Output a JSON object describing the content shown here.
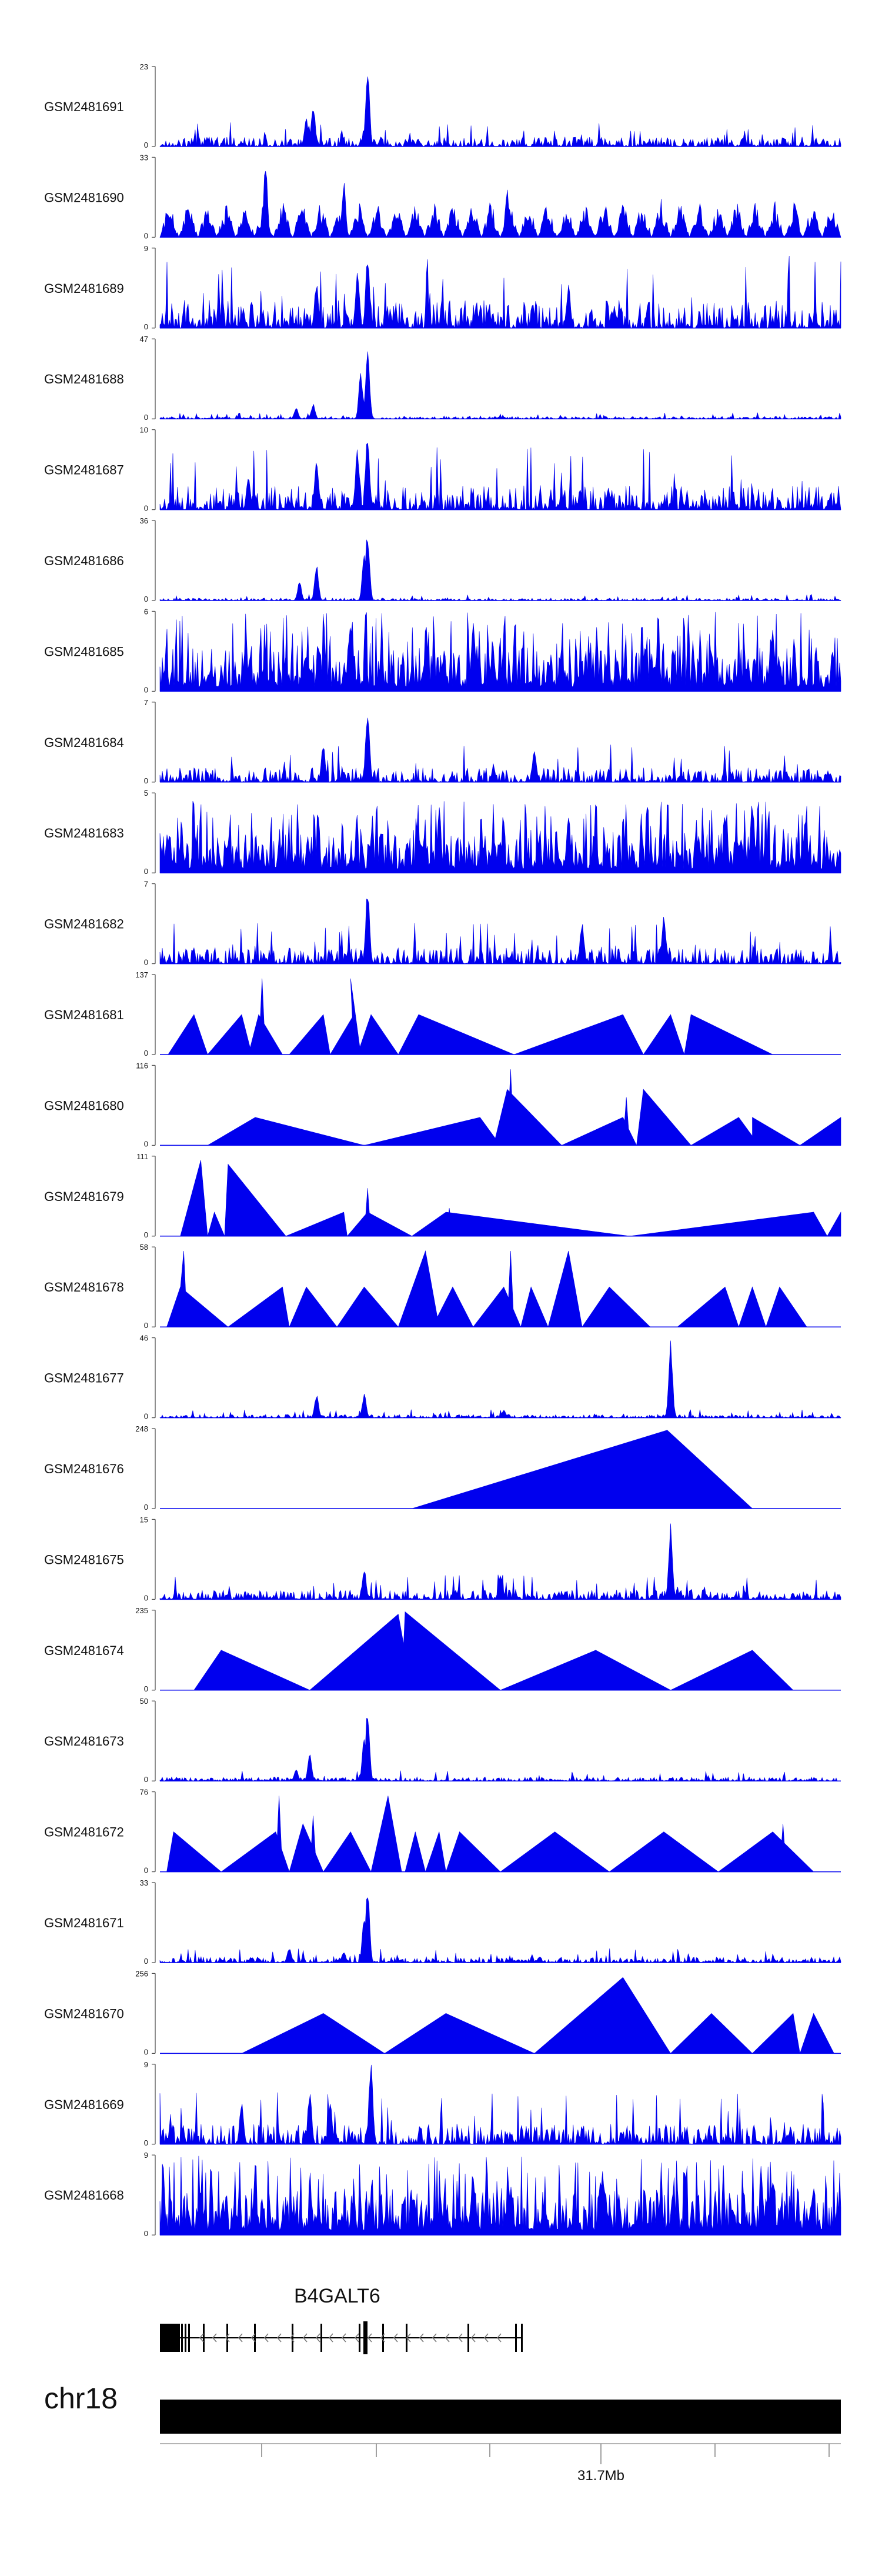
{
  "colors": {
    "signal": "#0000ee",
    "axis": "#444444",
    "text": "#111111",
    "gene": "#000000",
    "chrom": "#000000"
  },
  "chart_data": {
    "type": "area",
    "title": "",
    "tracks": [
      {
        "name": "GSM2481691",
        "ymax": "23",
        "ymin": "0",
        "style": "noisy",
        "bg": 0.12,
        "peaks": [
          [
            0.225,
            0.55
          ],
          [
            0.305,
            1.0
          ],
          [
            0.215,
            0.35
          ]
        ]
      },
      {
        "name": "GSM2481690",
        "ymax": "33",
        "ymin": "0",
        "style": "spiky",
        "bg": 0.35,
        "peaks": [
          [
            0.155,
            0.95
          ],
          [
            0.27,
            0.7
          ],
          [
            0.51,
            0.6
          ]
        ]
      },
      {
        "name": "GSM2481689",
        "ymax": "9",
        "ymin": "0",
        "style": "noisy",
        "bg": 0.35,
        "peaks": [
          [
            0.305,
            0.95
          ],
          [
            0.29,
            0.75
          ],
          [
            0.23,
            0.6
          ],
          [
            0.6,
            0.55
          ]
        ]
      },
      {
        "name": "GSM2481688",
        "ymax": "47",
        "ymin": "0",
        "style": "noisy",
        "bg": 0.03,
        "peaks": [
          [
            0.305,
            0.95
          ],
          [
            0.295,
            0.6
          ],
          [
            0.2,
            0.15
          ],
          [
            0.225,
            0.2
          ]
        ]
      },
      {
        "name": "GSM2481687",
        "ymax": "10",
        "ymin": "0",
        "style": "noisy",
        "bg": 0.3,
        "peaks": [
          [
            0.305,
            1.0
          ],
          [
            0.29,
            0.8
          ],
          [
            0.23,
            0.7
          ],
          [
            0.13,
            0.45
          ]
        ]
      },
      {
        "name": "GSM2481686",
        "ymax": "36",
        "ymin": "0",
        "style": "noisy",
        "bg": 0.03,
        "peaks": [
          [
            0.305,
            0.9
          ],
          [
            0.23,
            0.45
          ],
          [
            0.205,
            0.25
          ],
          [
            0.3,
            0.6
          ]
        ]
      },
      {
        "name": "GSM2481685",
        "ymax": "6",
        "ymin": "0",
        "style": "dense",
        "bg": 0.55,
        "peaks": [
          [
            0.28,
            0.95
          ],
          [
            0.46,
            0.9
          ],
          [
            0.9,
            0.85
          ]
        ]
      },
      {
        "name": "GSM2481684",
        "ymax": "7",
        "ymin": "0",
        "style": "noisy",
        "bg": 0.18,
        "peaks": [
          [
            0.305,
            1.0
          ],
          [
            0.24,
            0.5
          ],
          [
            0.55,
            0.4
          ]
        ]
      },
      {
        "name": "GSM2481683",
        "ymax": "5",
        "ymin": "0",
        "style": "dense",
        "bg": 0.5,
        "peaks": [
          [
            0.87,
            0.95
          ],
          [
            0.41,
            0.85
          ],
          [
            0.6,
            0.8
          ]
        ]
      },
      {
        "name": "GSM2481682",
        "ymax": "7",
        "ymin": "0",
        "style": "noisy",
        "bg": 0.2,
        "peaks": [
          [
            0.305,
            1.0
          ],
          [
            0.62,
            0.55
          ],
          [
            0.74,
            0.6
          ]
        ]
      },
      {
        "name": "GSM2481681",
        "ymax": "137",
        "ymin": "0",
        "style": "tri",
        "tri": [
          [
            0.012,
            0.05,
            0.07,
            0.5
          ],
          [
            0.07,
            0.12,
            0.135,
            0.5
          ],
          [
            0.13,
            0.145,
            0.18,
            0.5
          ],
          [
            0.145,
            0.15,
            0.155,
            0.95
          ],
          [
            0.19,
            0.24,
            0.25,
            0.5
          ],
          [
            0.25,
            0.285,
            0.29,
            0.5
          ],
          [
            0.285,
            0.28,
            0.295,
            0.95
          ],
          [
            0.29,
            0.31,
            0.35,
            0.5
          ],
          [
            0.35,
            0.38,
            0.52,
            0.5
          ],
          [
            0.52,
            0.68,
            0.71,
            0.5
          ],
          [
            0.71,
            0.75,
            0.77,
            0.5
          ],
          [
            0.77,
            0.78,
            0.9,
            0.5
          ]
        ]
      },
      {
        "name": "GSM2481680",
        "ymax": "116",
        "ymin": "0",
        "style": "tri",
        "tri": [
          [
            0.07,
            0.14,
            0.3,
            0.35
          ],
          [
            0.3,
            0.47,
            0.5,
            0.35
          ],
          [
            0.49,
            0.51,
            0.59,
            0.7
          ],
          [
            0.51,
            0.515,
            0.52,
            0.95
          ],
          [
            0.59,
            0.68,
            0.7,
            0.35
          ],
          [
            0.68,
            0.685,
            0.69,
            0.6
          ],
          [
            0.7,
            0.71,
            0.78,
            0.7
          ],
          [
            0.78,
            0.85,
            0.88,
            0.35
          ],
          [
            0.87,
            0.87,
            0.94,
            0.35
          ],
          [
            0.94,
            1.0,
            1.0,
            0.35
          ]
        ]
      },
      {
        "name": "GSM2481679",
        "ymax": "111",
        "ymin": "0",
        "style": "tri",
        "tri": [
          [
            0.03,
            0.06,
            0.07,
            0.95
          ],
          [
            0.07,
            0.08,
            0.095,
            0.3
          ],
          [
            0.095,
            0.1,
            0.185,
            0.9
          ],
          [
            0.185,
            0.27,
            0.275,
            0.3
          ],
          [
            0.275,
            0.305,
            0.37,
            0.3
          ],
          [
            0.3,
            0.305,
            0.31,
            0.6
          ],
          [
            0.37,
            0.42,
            0.69,
            0.3
          ],
          [
            0.42,
            0.425,
            0.43,
            0.35
          ],
          [
            0.69,
            0.96,
            0.98,
            0.3
          ],
          [
            0.98,
            1.0,
            1.0,
            0.3
          ]
        ]
      },
      {
        "name": "GSM2481678",
        "ymax": "58",
        "ymin": "0",
        "style": "tri",
        "tri": [
          [
            0.01,
            0.03,
            0.1,
            0.5
          ],
          [
            0.025,
            0.035,
            0.04,
            0.95
          ],
          [
            0.1,
            0.18,
            0.19,
            0.5
          ],
          [
            0.19,
            0.215,
            0.26,
            0.5
          ],
          [
            0.26,
            0.3,
            0.35,
            0.5
          ],
          [
            0.35,
            0.39,
            0.41,
            0.95
          ],
          [
            0.4,
            0.43,
            0.46,
            0.5
          ],
          [
            0.46,
            0.505,
            0.53,
            0.5
          ],
          [
            0.51,
            0.515,
            0.52,
            0.95
          ],
          [
            0.53,
            0.545,
            0.57,
            0.5
          ],
          [
            0.57,
            0.6,
            0.62,
            0.95
          ],
          [
            0.62,
            0.66,
            0.72,
            0.5
          ],
          [
            0.76,
            0.83,
            0.85,
            0.5
          ],
          [
            0.85,
            0.87,
            0.89,
            0.5
          ],
          [
            0.89,
            0.91,
            0.95,
            0.5
          ]
        ]
      },
      {
        "name": "GSM2481677",
        "ymax": "46",
        "ymin": "0",
        "style": "noisy",
        "bg": 0.04,
        "peaks": [
          [
            0.75,
            1.0
          ],
          [
            0.23,
            0.3
          ],
          [
            0.3,
            0.3
          ],
          [
            0.505,
            0.1
          ]
        ]
      },
      {
        "name": "GSM2481676",
        "ymax": "248",
        "ymin": "0",
        "style": "tri",
        "tri": [
          [
            0.37,
            0.745,
            0.87,
            0.98
          ]
        ]
      },
      {
        "name": "GSM2481675",
        "ymax": "15",
        "ymin": "0",
        "style": "noisy",
        "bg": 0.12,
        "peaks": [
          [
            0.75,
            0.95
          ],
          [
            0.3,
            0.4
          ],
          [
            0.5,
            0.35
          ]
        ]
      },
      {
        "name": "GSM2481674",
        "ymax": "235",
        "ymin": "0",
        "style": "tri",
        "tri": [
          [
            0.05,
            0.09,
            0.22,
            0.5
          ],
          [
            0.22,
            0.35,
            0.37,
            0.95
          ],
          [
            0.355,
            0.36,
            0.5,
            0.98
          ],
          [
            0.5,
            0.64,
            0.75,
            0.5
          ],
          [
            0.75,
            0.87,
            0.93,
            0.5
          ]
        ]
      },
      {
        "name": "GSM2481673",
        "ymax": "50",
        "ymin": "0",
        "style": "noisy",
        "bg": 0.05,
        "peaks": [
          [
            0.305,
            0.95
          ],
          [
            0.3,
            0.6
          ],
          [
            0.22,
            0.35
          ],
          [
            0.2,
            0.15
          ]
        ]
      },
      {
        "name": "GSM2481672",
        "ymax": "76",
        "ymin": "0",
        "style": "tri",
        "tri": [
          [
            0.01,
            0.02,
            0.09,
            0.5
          ],
          [
            0.09,
            0.17,
            0.19,
            0.5
          ],
          [
            0.17,
            0.175,
            0.18,
            0.95
          ],
          [
            0.19,
            0.21,
            0.24,
            0.6
          ],
          [
            0.22,
            0.225,
            0.23,
            0.7
          ],
          [
            0.24,
            0.28,
            0.31,
            0.5
          ],
          [
            0.31,
            0.335,
            0.355,
            0.95
          ],
          [
            0.36,
            0.375,
            0.39,
            0.5
          ],
          [
            0.39,
            0.41,
            0.42,
            0.5
          ],
          [
            0.42,
            0.44,
            0.5,
            0.5
          ],
          [
            0.5,
            0.58,
            0.66,
            0.5
          ],
          [
            0.66,
            0.74,
            0.82,
            0.5
          ],
          [
            0.82,
            0.9,
            0.96,
            0.5
          ],
          [
            0.91,
            0.915,
            0.92,
            0.6
          ]
        ]
      },
      {
        "name": "GSM2481671",
        "ymax": "33",
        "ymin": "0",
        "style": "noisy",
        "bg": 0.07,
        "peaks": [
          [
            0.305,
            1.0
          ],
          [
            0.3,
            0.6
          ],
          [
            0.19,
            0.2
          ],
          [
            0.27,
            0.15
          ]
        ]
      },
      {
        "name": "GSM2481670",
        "ymax": "256",
        "ymin": "0",
        "style": "tri",
        "tri": [
          [
            0.12,
            0.24,
            0.33,
            0.5
          ],
          [
            0.33,
            0.42,
            0.55,
            0.5
          ],
          [
            0.42,
            0.425,
            0.43,
            0.2
          ],
          [
            0.55,
            0.68,
            0.75,
            0.95
          ],
          [
            0.75,
            0.81,
            0.87,
            0.5
          ],
          [
            0.87,
            0.93,
            0.94,
            0.5
          ],
          [
            0.94,
            0.96,
            0.99,
            0.5
          ]
        ]
      },
      {
        "name": "GSM2481669",
        "ymax": "9",
        "ymin": "0",
        "style": "noisy",
        "bg": 0.25,
        "peaks": [
          [
            0.31,
            1.0
          ],
          [
            0.22,
            0.7
          ],
          [
            0.25,
            0.55
          ],
          [
            0.12,
            0.55
          ]
        ]
      },
      {
        "name": "GSM2481668",
        "ymax": "9",
        "ymin": "0",
        "style": "dense",
        "bg": 0.55,
        "peaks": [
          [
            0.46,
            0.85
          ],
          [
            0.65,
            0.85
          ],
          [
            0.9,
            0.8
          ]
        ]
      }
    ],
    "gene": {
      "name": "B4GALT6",
      "strand": "minus"
    },
    "chromosome": {
      "name": "chr18",
      "tick_label": "31.7Mb"
    }
  }
}
